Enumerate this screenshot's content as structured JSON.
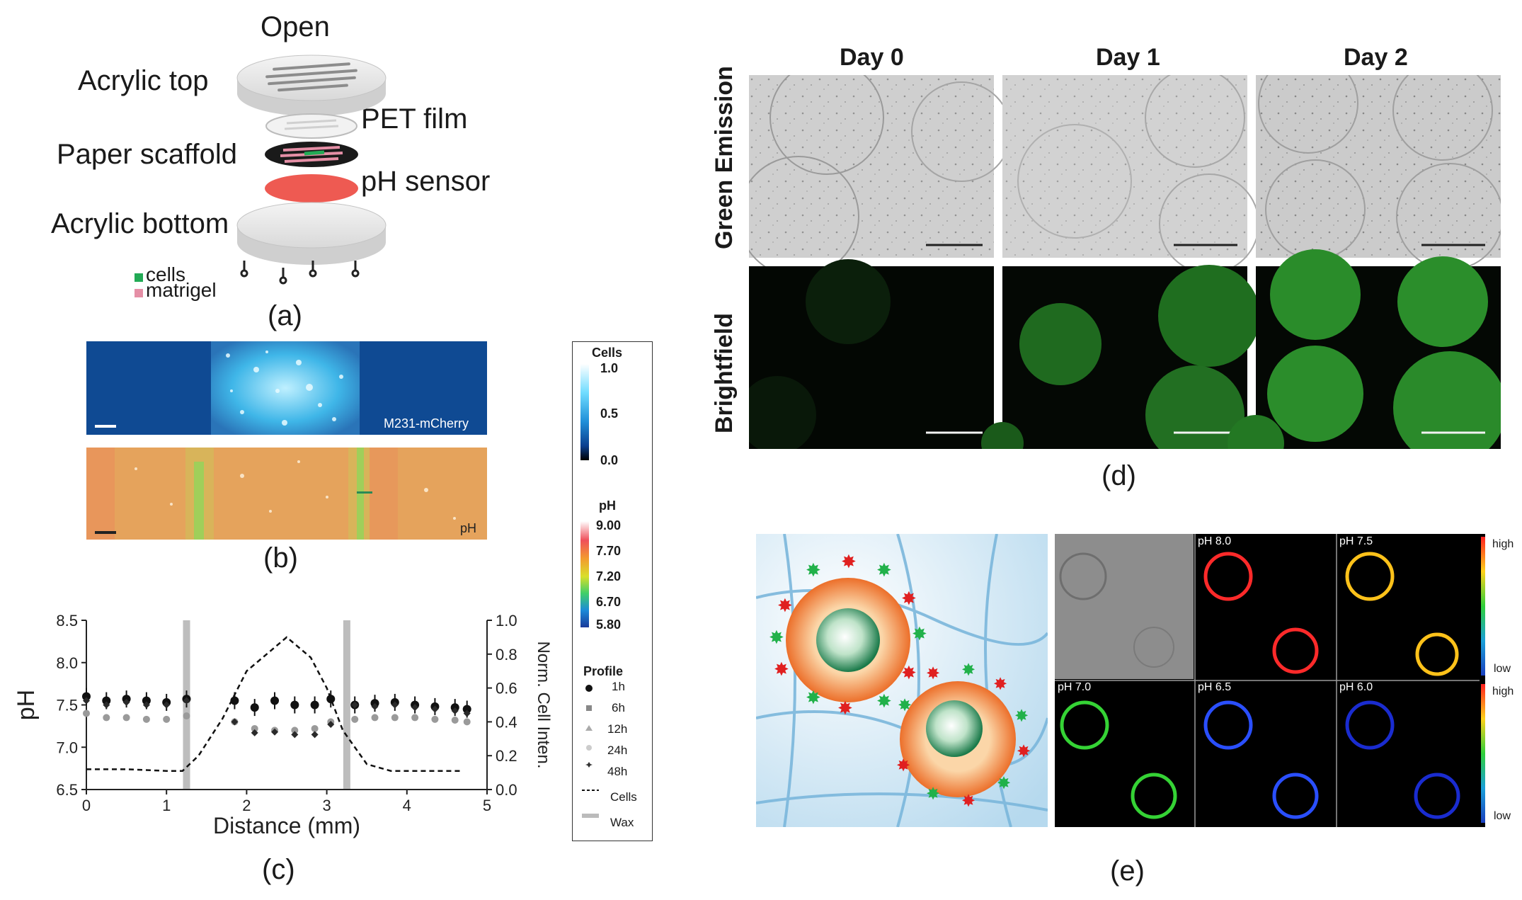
{
  "panel_a": {
    "title": "Open",
    "layers": [
      "Acrylic top",
      "PET film",
      "Paper scaffold",
      "pH sensor",
      "Acrylic bottom"
    ],
    "legend": [
      "cells",
      "matrigel"
    ],
    "caption": "(a)"
  },
  "panel_b": {
    "top_label": "M231-mCherry",
    "bottom_label": "pH",
    "caption": "(b)"
  },
  "colorbar": {
    "cells_title": "Cells",
    "cells_ticks": [
      "1.0",
      "0.5",
      "0.0"
    ],
    "ph_title": "pH",
    "ph_ticks": [
      "9.00",
      "7.70",
      "7.20",
      "6.70",
      "5.80"
    ],
    "profile_title": "Profile",
    "profile_items": [
      "1h",
      "6h",
      "12h",
      "24h",
      "48h"
    ],
    "cells_line": "Cells",
    "wax_line": "Wax"
  },
  "panel_c": {
    "caption": "(c)",
    "chart_data": {
      "type": "scatter",
      "xlabel": "Distance (mm)",
      "ylabel": "pH",
      "y2label": "Norm. Cell Inten.",
      "xlim": [
        0,
        5
      ],
      "ylim": [
        6.5,
        8.5
      ],
      "y2lim": [
        0.0,
        1.0
      ],
      "x_ticks": [
        "0",
        "1",
        "2",
        "3",
        "4",
        "5"
      ],
      "y_ticks": [
        "6.5",
        "7.0",
        "7.5",
        "8.0",
        "8.5"
      ],
      "y2_ticks": [
        "0.0",
        "0.2",
        "0.4",
        "0.6",
        "0.8",
        "1.0"
      ],
      "wax_x": [
        1.25,
        3.25
      ],
      "x": [
        0.0,
        0.25,
        0.5,
        0.75,
        1.0,
        1.25,
        1.6,
        1.85,
        2.1,
        2.35,
        2.6,
        2.85,
        3.05,
        3.35,
        3.6,
        3.85,
        4.1,
        4.35,
        4.6,
        4.75
      ],
      "series": [
        {
          "name": "1h",
          "values": [
            7.6,
            7.55,
            7.57,
            7.55,
            7.53,
            7.57,
            null,
            7.55,
            7.47,
            7.55,
            7.5,
            7.5,
            7.57,
            7.5,
            7.52,
            7.53,
            7.5,
            7.48,
            7.47,
            7.45
          ]
        },
        {
          "name": "6h",
          "values": [
            7.4,
            7.35,
            7.35,
            7.33,
            7.33,
            7.37,
            null,
            7.3,
            7.22,
            7.2,
            7.2,
            7.22,
            7.3,
            7.33,
            7.35,
            7.35,
            7.35,
            7.33,
            7.32,
            7.3
          ]
        },
        {
          "name": "48h",
          "values": [
            7.55,
            7.5,
            7.53,
            7.5,
            7.5,
            7.55,
            null,
            7.3,
            7.17,
            7.18,
            7.15,
            7.15,
            7.27,
            7.5,
            7.48,
            7.5,
            7.47,
            7.45,
            7.43,
            7.4
          ]
        },
        {
          "name": "Cells",
          "x": [
            0.0,
            0.5,
            1.0,
            1.2,
            1.4,
            1.7,
            2.0,
            2.3,
            2.5,
            2.8,
            3.0,
            3.2,
            3.5,
            3.8,
            4.2,
            4.7
          ],
          "values": [
            0.12,
            0.12,
            0.11,
            0.11,
            0.2,
            0.42,
            0.7,
            0.82,
            0.9,
            0.78,
            0.6,
            0.35,
            0.15,
            0.11,
            0.11,
            0.11
          ]
        }
      ]
    }
  },
  "panel_d": {
    "columns": [
      "Day 0",
      "Day 1",
      "Day 2"
    ],
    "rows": [
      "Green Emission",
      "Brightfield"
    ],
    "caption": "(d)"
  },
  "panel_e": {
    "grid_labels": [
      "pH 8.0",
      "pH 7.5",
      "pH 7.0",
      "pH 6.5",
      "pH 6.0"
    ],
    "scale_high": "high",
    "scale_low": "low",
    "ring_colors": [
      "#ff2a2a",
      "#ffc21a",
      "#35d335",
      "#2a4fff",
      "#1a2cd0"
    ],
    "caption": "(e)"
  }
}
